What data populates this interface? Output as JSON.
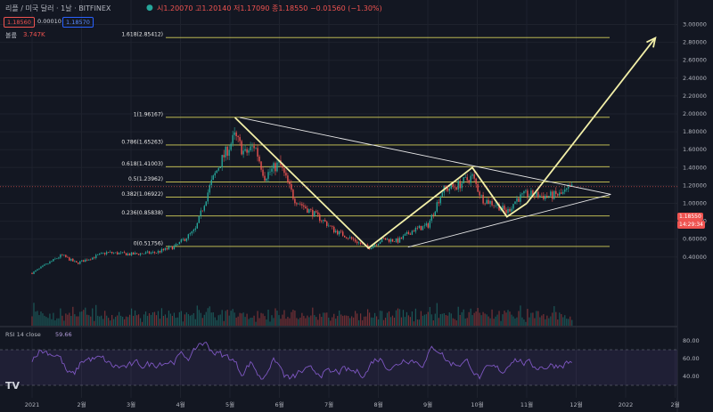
{
  "header": {
    "symbol": "리플 / 미국 달러 · 1날 · BITFINEX",
    "ohlc": "시1.20070 고1.20140 저1.17090 종1.18550 −0.01560 (−1.30%)",
    "sell": "1.18560",
    "spread": "0.00010",
    "buy": "1.18570",
    "volume_label": "볼륨",
    "volume_value": "3.747K"
  },
  "price_tag": {
    "price": "1.18550",
    "countdown": "14:29:34"
  },
  "rsi_label": "RSI 14 close",
  "rsi_value": "59.66",
  "colors": {
    "up": "#26a69a",
    "down": "#ef5350",
    "fib": "#d4cf5a",
    "pattern": "#f2efa8",
    "rsi": "#7e57c2"
  },
  "chart_data": [
    {
      "type": "candlestick",
      "y_ticks": [
        "3.00000",
        "2.80000",
        "2.60000",
        "2.40000",
        "2.20000",
        "2.00000",
        "1.80000",
        "1.60000",
        "1.40000",
        "1.20000",
        "1.00000",
        "0.80000",
        "0.60000",
        "0.40000"
      ],
      "x_ticks": [
        "2021",
        "2월",
        "3월",
        "4월",
        "5월",
        "6월",
        "7월",
        "8월",
        "9월",
        "10월",
        "11월",
        "12월",
        "2022",
        "2월"
      ],
      "fib_levels": [
        {
          "label": "1.618(2.85412)",
          "value": 2.85412
        },
        {
          "label": "1(1.96167)",
          "value": 1.96167
        },
        {
          "label": "0.786(1.65263)",
          "value": 1.65263
        },
        {
          "label": "0.618(1.41003)",
          "value": 1.41003
        },
        {
          "label": "0.5(1.23962)",
          "value": 1.23962
        },
        {
          "label": "0.382(1.06922)",
          "value": 1.06922
        },
        {
          "label": "0.236(0.85838)",
          "value": 0.85838
        },
        {
          "label": "0(0.51756)",
          "value": 0.51756
        }
      ],
      "zigzag": [
        [
          4.1,
          1.96
        ],
        [
          6.8,
          0.5
        ],
        [
          8.9,
          1.4
        ],
        [
          9.6,
          0.85
        ],
        [
          10.0,
          1.0
        ]
      ],
      "projection": [
        [
          10.0,
          1.0
        ],
        [
          12.6,
          2.85
        ]
      ],
      "triangle_upper": [
        [
          4.2,
          1.96
        ],
        [
          11.7,
          1.1
        ]
      ],
      "triangle_lower": [
        [
          7.6,
          0.51
        ],
        [
          11.7,
          1.1
        ]
      ],
      "last_close": 1.1855
    },
    {
      "type": "line",
      "title": "RSI 14 close",
      "y_ticks": [
        "80.00",
        "60.00",
        "40.00"
      ],
      "bands": [
        30,
        70
      ]
    }
  ]
}
